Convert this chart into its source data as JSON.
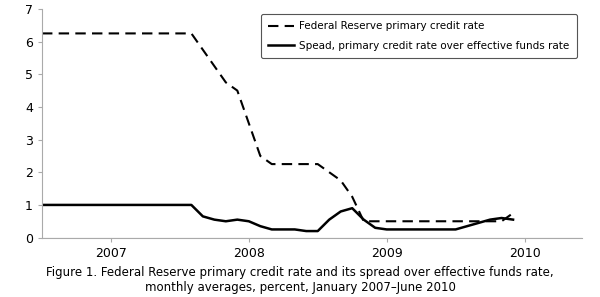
{
  "title_line1": "Figure 1. Federal Reserve primary credit rate and its spread over effective funds rate,",
  "title_line2": "monthly averages, percent, January 2007–June 2010",
  "legend_label_dashed": "Federal Reserve primary credit rate",
  "legend_label_solid": "Spead, primary credit rate over effective funds rate",
  "ylim": [
    0,
    7
  ],
  "yticks": [
    0,
    1,
    2,
    3,
    4,
    5,
    6,
    7
  ],
  "xtick_labels": [
    "2007",
    "2008",
    "2009",
    "2010"
  ],
  "xtick_positions": [
    6,
    18,
    30,
    42
  ],
  "xlim": [
    0,
    47
  ],
  "background_color": "#ffffff",
  "line_color": "#000000",
  "months_from_jan2007": [
    0,
    1,
    2,
    3,
    4,
    5,
    6,
    7,
    8,
    9,
    10,
    11,
    12,
    13,
    14,
    15,
    16,
    17,
    18,
    19,
    20,
    21,
    22,
    23,
    24,
    25,
    26,
    27,
    28,
    29,
    30,
    31,
    32,
    33,
    34,
    35,
    36,
    37,
    38,
    39,
    40,
    41
  ],
  "federal_reserve_rate": [
    6.25,
    6.25,
    6.25,
    6.25,
    6.25,
    6.25,
    6.25,
    6.25,
    6.25,
    6.25,
    6.25,
    6.25,
    6.25,
    6.25,
    5.75,
    5.25,
    4.75,
    4.5,
    3.5,
    2.5,
    2.25,
    2.25,
    2.25,
    2.25,
    2.25,
    2.0,
    1.75,
    1.25,
    0.5,
    0.5,
    0.5,
    0.5,
    0.5,
    0.5,
    0.5,
    0.5,
    0.5,
    0.5,
    0.5,
    0.5,
    0.5,
    0.75
  ],
  "spread_rate": [
    1.0,
    1.0,
    1.0,
    1.0,
    1.0,
    1.0,
    1.0,
    1.0,
    1.0,
    1.0,
    1.0,
    1.0,
    1.0,
    1.0,
    0.65,
    0.55,
    0.5,
    0.55,
    0.5,
    0.35,
    0.25,
    0.25,
    0.25,
    0.2,
    0.2,
    0.55,
    0.8,
    0.9,
    0.55,
    0.3,
    0.25,
    0.25,
    0.25,
    0.25,
    0.25,
    0.25,
    0.25,
    0.35,
    0.45,
    0.55,
    0.6,
    0.55
  ],
  "caption_fontsize": 8.5,
  "tick_fontsize": 9
}
